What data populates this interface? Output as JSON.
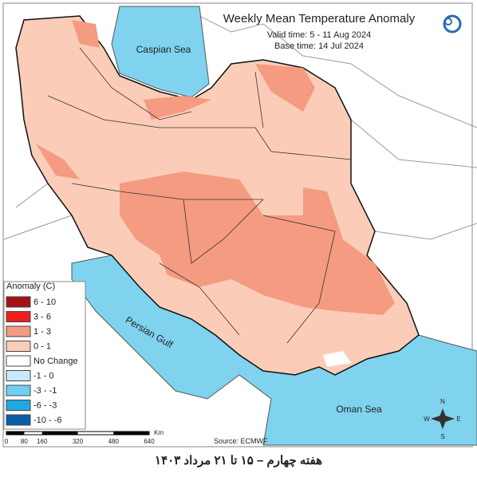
{
  "header": {
    "title": "Weekly Mean Temperature Anomaly",
    "valid_time": "Valid time: 5 - 11 Aug 2024",
    "base_time": "Base time: 14 Jul 2024"
  },
  "legend": {
    "title": "Anomaly (C)",
    "items": [
      {
        "label": "6 - 10",
        "color": "#a50f15"
      },
      {
        "label": "3 - 6",
        "color": "#ef1c1c"
      },
      {
        "label": "1 - 3",
        "color": "#f59b81"
      },
      {
        "label": "0 - 1",
        "color": "#fbcdb9"
      },
      {
        "label": "No Change",
        "color": "#ffffff"
      },
      {
        "label": "-1 - 0",
        "color": "#c6e8fb"
      },
      {
        "label": "-3 - -1",
        "color": "#6fcff2"
      },
      {
        "label": "-6 - -3",
        "color": "#1fa9e4"
      },
      {
        "label": "-10 - -6",
        "color": "#0a5fa8"
      }
    ]
  },
  "labels": {
    "caspian": "Caspian Sea",
    "persian_gulf": "Persian Gulf",
    "oman": "Oman Sea"
  },
  "scale_bar": {
    "unit": "Km",
    "ticks": [
      0,
      80,
      160,
      320,
      480,
      640
    ]
  },
  "source": "Source: ECMWF",
  "compass": {
    "n": "N",
    "e": "E",
    "s": "S",
    "w": "W"
  },
  "caption": "هفته چهارم – ۱۵ تا ۲۱ مرداد ۱۴۰۳"
}
